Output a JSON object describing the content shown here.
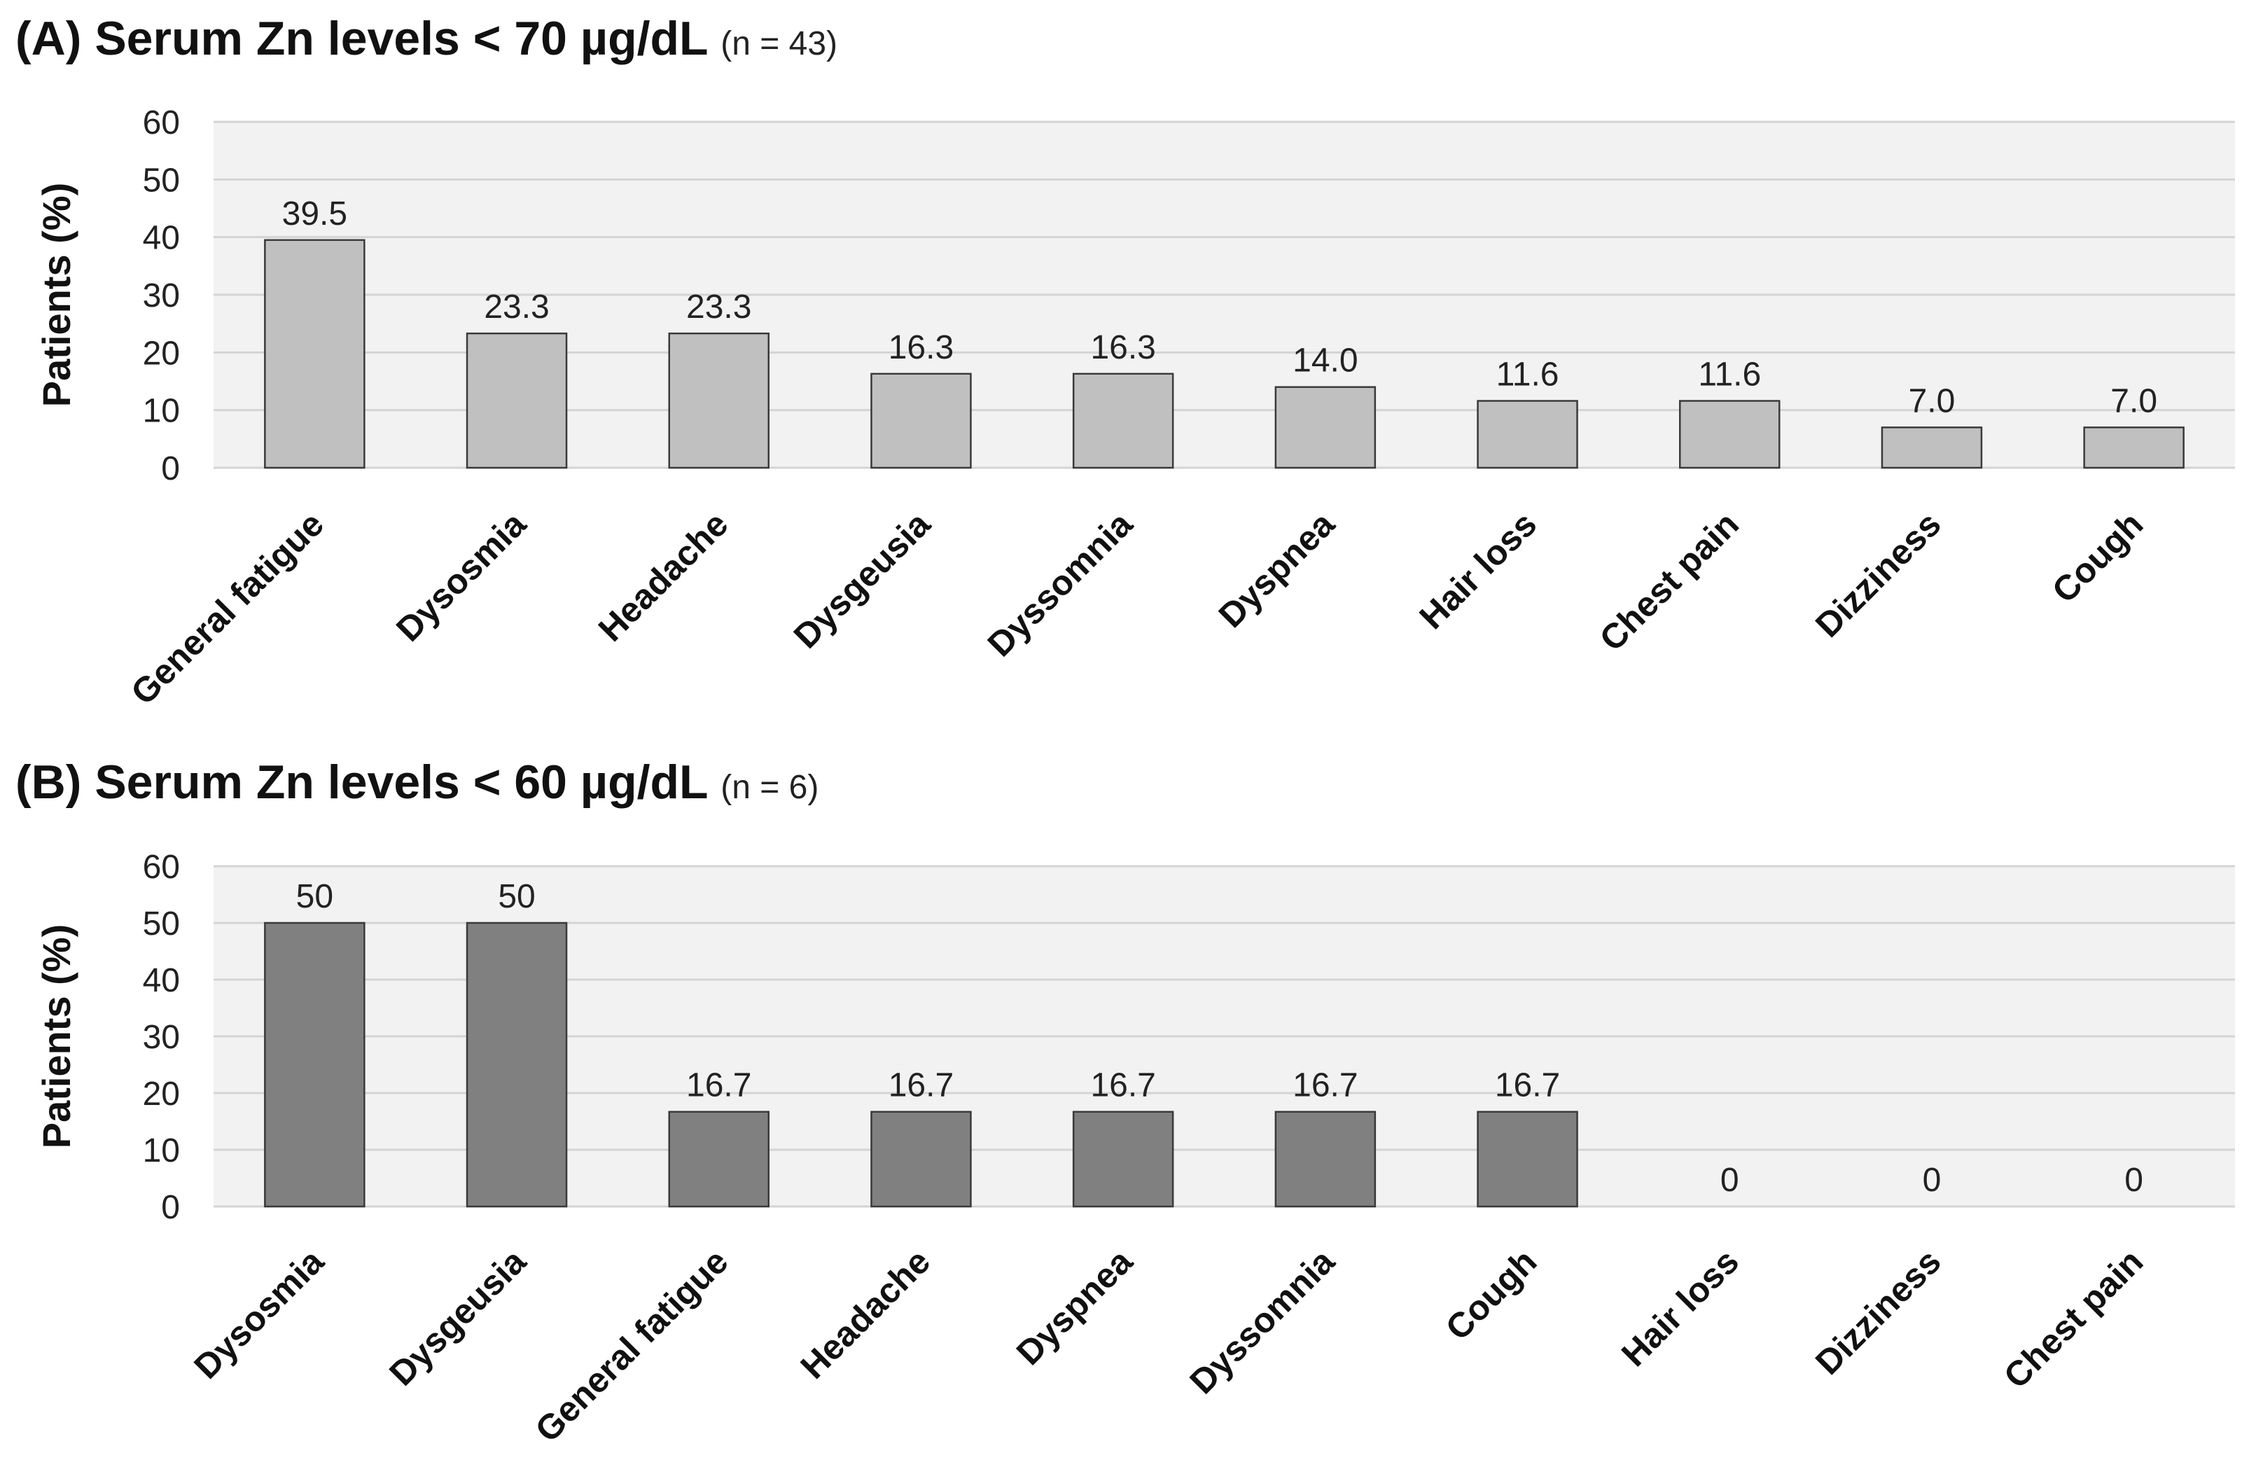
{
  "chart_data": [
    {
      "type": "bar",
      "panel": "(A)",
      "title": "Serum Zn levels < 70 µg/dL",
      "n_label": "(n = 43)",
      "categories": [
        "General fatigue",
        "Dysosmia",
        "Headache",
        "Dysgeusia",
        "Dyssomnia",
        "Dyspnea",
        "Hair loss",
        "Chest pain",
        "Dizziness",
        "Cough"
      ],
      "values": [
        39.5,
        23.3,
        23.3,
        16.3,
        16.3,
        14.0,
        11.6,
        11.6,
        7.0,
        7.0
      ],
      "data_labels": [
        "39.5",
        "23.3",
        "23.3",
        "16.3",
        "16.3",
        "14.0",
        "11.6",
        "11.6",
        "7.0",
        "7.0"
      ],
      "xlabel": "",
      "ylabel": "Patients (%)",
      "ylim": [
        0,
        60
      ],
      "yticks": [
        0,
        10,
        20,
        30,
        40,
        50,
        60
      ],
      "grid": true,
      "bar_color": "#c0c0c0",
      "plot_bg": "#f2f2f2"
    },
    {
      "type": "bar",
      "panel": "(B)",
      "title": "Serum Zn levels < 60 µg/dL",
      "n_label": "(n = 6)",
      "categories": [
        "Dysosmia",
        "Dysgeusia",
        "General fatigue",
        "Headache",
        "Dyspnea",
        "Dyssomnia",
        "Cough",
        "Hair loss",
        "Dizziness",
        "Chest pain"
      ],
      "values": [
        50,
        50,
        16.7,
        16.7,
        16.7,
        16.7,
        16.7,
        0,
        0,
        0
      ],
      "data_labels": [
        "50",
        "50",
        "16.7",
        "16.7",
        "16.7",
        "16.7",
        "16.7",
        "0",
        "0",
        "0"
      ],
      "xlabel": "",
      "ylabel": "Patients (%)",
      "ylim": [
        0,
        60
      ],
      "yticks": [
        0,
        10,
        20,
        30,
        40,
        50,
        60
      ],
      "grid": true,
      "bar_color": "#808080",
      "plot_bg": "#f2f2f2"
    }
  ]
}
